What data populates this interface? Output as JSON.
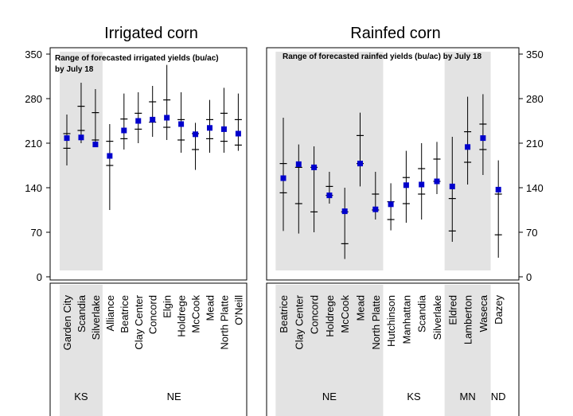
{
  "chart_data": [
    {
      "type": "range-plot",
      "title": "Irrigated corn",
      "annotation": [
        "Range of forecasted irrigated yields (bu/ac)",
        "by July  18"
      ],
      "ylim": [
        -5,
        360
      ],
      "yticks": [
        0,
        70,
        140,
        210,
        280,
        350
      ],
      "y_axis_side": "left",
      "state_groups": [
        {
          "state": "KS",
          "sites": [
            "Garden City",
            "Scandia",
            "Silverlake"
          ],
          "shaded": true
        },
        {
          "state": "NE",
          "sites": [
            "Alliance",
            "Beatrice",
            "Clay Center",
            "Concord",
            "Elgin",
            "Holdrege",
            "McCook",
            "Mead",
            "North Platte",
            "O'Neill"
          ],
          "shaded": false
        }
      ],
      "sites": [
        {
          "name": "Garden City",
          "state": "KS",
          "low": 175,
          "q1": 202,
          "q3": 225,
          "high": 255,
          "final": 218
        },
        {
          "name": "Scandia",
          "state": "KS",
          "low": 210,
          "q1": 230,
          "q3": 268,
          "high": 305,
          "final": 219
        },
        {
          "name": "Silverlake",
          "state": "KS",
          "low": 205,
          "q1": 215,
          "q3": 258,
          "high": 295,
          "final": 208
        },
        {
          "name": "Alliance",
          "state": "NE",
          "low": 105,
          "q1": 175,
          "q3": 213,
          "high": 240,
          "final": 190
        },
        {
          "name": "Beatrice",
          "state": "NE",
          "low": 200,
          "q1": 217,
          "q3": 248,
          "high": 288,
          "final": 230
        },
        {
          "name": "Clay Center",
          "state": "NE",
          "low": 210,
          "q1": 232,
          "q3": 257,
          "high": 290,
          "final": 245
        },
        {
          "name": "Concord",
          "state": "NE",
          "low": 220,
          "q1": 243,
          "q3": 275,
          "high": 300,
          "final": 247
        },
        {
          "name": "Elgin",
          "state": "NE",
          "low": 215,
          "q1": 235,
          "q3": 278,
          "high": 333,
          "final": 250
        },
        {
          "name": "Holdrege",
          "state": "NE",
          "low": 195,
          "q1": 215,
          "q3": 247,
          "high": 290,
          "final": 240
        },
        {
          "name": "McCook",
          "state": "NE",
          "low": 168,
          "q1": 200,
          "q3": 225,
          "high": 242,
          "final": 224
        },
        {
          "name": "Mead",
          "state": "NE",
          "low": 195,
          "q1": 217,
          "q3": 247,
          "high": 278,
          "final": 234
        },
        {
          "name": "North Platte",
          "state": "NE",
          "low": 195,
          "q1": 213,
          "q3": 257,
          "high": 297,
          "final": 232
        },
        {
          "name": "O'Neill",
          "state": "NE",
          "low": 198,
          "q1": 207,
          "q3": 247,
          "high": 288,
          "final": 225
        }
      ]
    },
    {
      "type": "range-plot",
      "title": "Rainfed corn",
      "annotation": [
        "Range of forecasted rainfed yields (bu/ac) by July  18"
      ],
      "ylim": [
        -5,
        360
      ],
      "yticks": [
        0,
        70,
        140,
        210,
        280,
        350
      ],
      "y_axis_side": "right",
      "state_groups": [
        {
          "state": "NE",
          "sites": [
            "Beatrice",
            "Clay Center",
            "Concord",
            "Holdrege",
            "McCook",
            "Mead",
            "North Platte"
          ],
          "shaded": true
        },
        {
          "state": "KS",
          "sites": [
            "Hutchinson",
            "Manhattan",
            "Scandia",
            "Silverlake"
          ],
          "shaded": false
        },
        {
          "state": "MN",
          "sites": [
            "Eldred",
            "Lamberton",
            "Waseca"
          ],
          "shaded": true
        },
        {
          "state": "ND",
          "sites": [
            "Dazey"
          ],
          "shaded": false
        }
      ],
      "sites": [
        {
          "name": "Beatrice",
          "state": "NE",
          "low": 72,
          "q1": 132,
          "q3": 178,
          "high": 250,
          "final": 155
        },
        {
          "name": "Clay Center",
          "state": "NE",
          "low": 68,
          "q1": 115,
          "q3": 172,
          "high": 208,
          "final": 177
        },
        {
          "name": "Concord",
          "state": "NE",
          "low": 70,
          "q1": 102,
          "q3": 172,
          "high": 205,
          "final": 172
        },
        {
          "name": "Holdrege",
          "state": "NE",
          "low": 115,
          "q1": 128,
          "q3": 142,
          "high": 165,
          "final": 128
        },
        {
          "name": "McCook",
          "state": "NE",
          "low": 28,
          "q1": 52,
          "q3": 102,
          "high": 140,
          "final": 103
        },
        {
          "name": "Mead",
          "state": "NE",
          "low": 142,
          "q1": 178,
          "q3": 222,
          "high": 258,
          "final": 178
        },
        {
          "name": "North Platte",
          "state": "NE",
          "low": 90,
          "q1": 105,
          "q3": 130,
          "high": 165,
          "final": 106
        },
        {
          "name": "Hutchinson",
          "state": "KS",
          "low": 73,
          "q1": 90,
          "q3": 118,
          "high": 147,
          "final": 114
        },
        {
          "name": "Manhattan",
          "state": "KS",
          "low": 85,
          "q1": 115,
          "q3": 156,
          "high": 198,
          "final": 144
        },
        {
          "name": "Scandia",
          "state": "KS",
          "low": 90,
          "q1": 130,
          "q3": 170,
          "high": 210,
          "final": 145
        },
        {
          "name": "Silverlake",
          "state": "KS",
          "low": 130,
          "q1": 150,
          "q3": 185,
          "high": 212,
          "final": 150
        },
        {
          "name": "Eldred",
          "state": "MN",
          "low": 55,
          "q1": 72,
          "q3": 123,
          "high": 220,
          "final": 142
        },
        {
          "name": "Lamberton",
          "state": "MN",
          "low": 145,
          "q1": 180,
          "q3": 228,
          "high": 283,
          "final": 204
        },
        {
          "name": "Waseca",
          "state": "MN",
          "low": 160,
          "q1": 200,
          "q3": 240,
          "high": 287,
          "final": 218
        },
        {
          "name": "Dazey",
          "state": "ND",
          "low": 30,
          "q1": 66,
          "q3": 130,
          "high": 183,
          "final": 137
        }
      ]
    }
  ],
  "colors": {
    "shade": "#e3e3e3",
    "range_line": "#000000",
    "marker": "#0000cc",
    "frame": "#000000"
  }
}
